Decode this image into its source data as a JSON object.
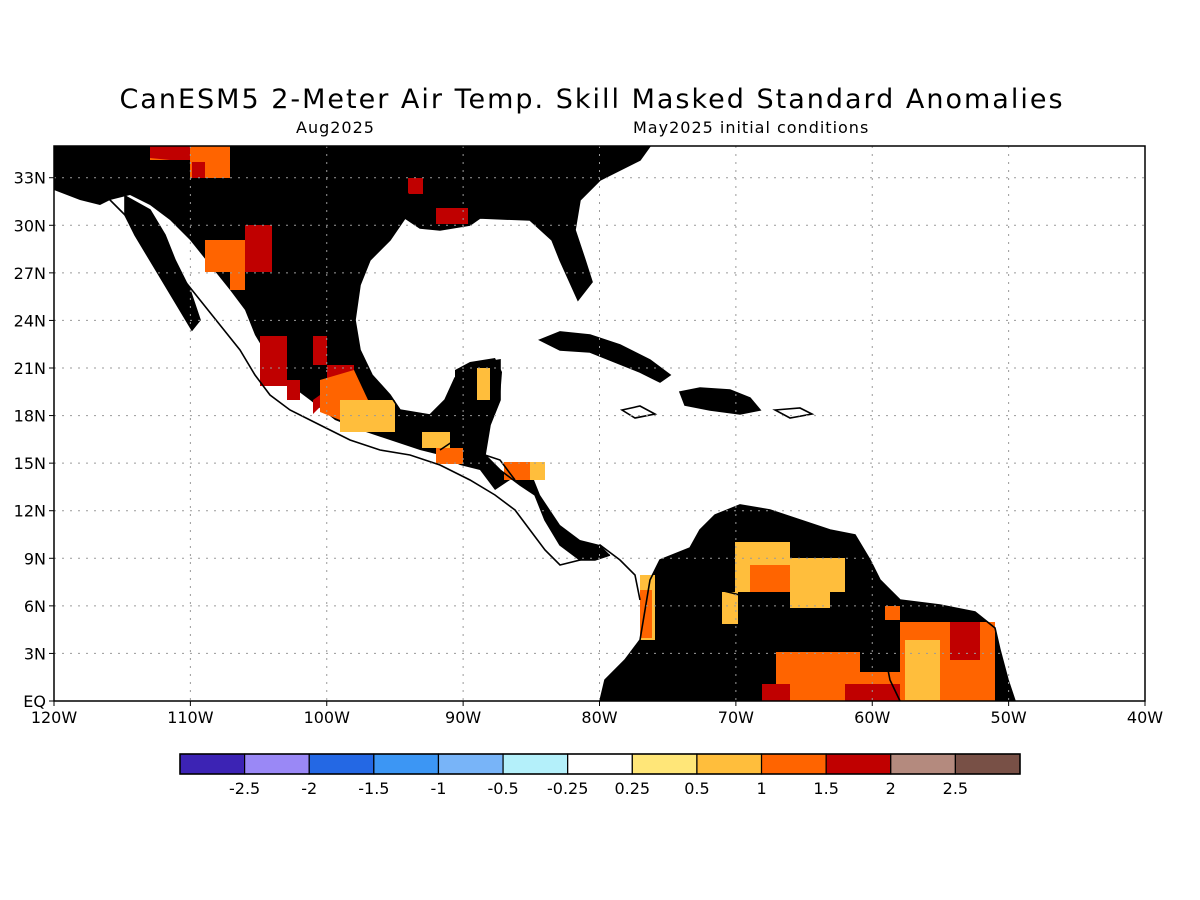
{
  "title": "CanESM5 2-Meter Air Temp. Skill Masked Standard Anomalies",
  "subtitle_left": "Aug2025",
  "subtitle_right": "May2025 initial conditions",
  "map": {
    "lat_labels": [
      "33N",
      "30N",
      "27N",
      "24N",
      "21N",
      "18N",
      "15N",
      "12N",
      "9N",
      "6N",
      "3N",
      "EQ"
    ],
    "lon_labels": [
      "120W",
      "110W",
      "100W",
      "90W",
      "80W",
      "70W",
      "60W",
      "50W",
      "40W"
    ],
    "colors": {
      "mask": "#e1e1e1",
      "land_outline": "#000000",
      "grid": "#9a9a9a"
    }
  },
  "colorbar": {
    "labels": [
      "-2.5",
      "-2",
      "-1.5",
      "-1",
      "-0.5",
      "-0.25",
      "0.25",
      "0.5",
      "1",
      "1.5",
      "2",
      "2.5"
    ],
    "colors": [
      "#3c23b4",
      "#9a88f6",
      "#2468e4",
      "#3c96f4",
      "#78b4f8",
      "#b4f0fa",
      "#ffffff",
      "#ffe678",
      "#ffbe3c",
      "#ff6400",
      "#c00000",
      "#b48a7e",
      "#785046"
    ]
  }
}
